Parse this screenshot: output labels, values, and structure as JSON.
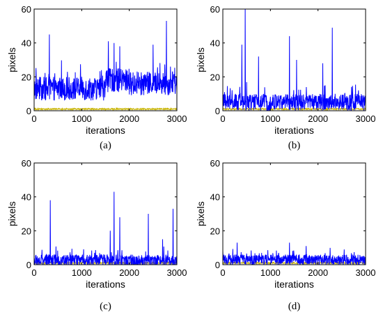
{
  "chart_data": [
    {
      "type": "line",
      "caption": "(a)",
      "xlabel": "iterations",
      "ylabel": "pixels",
      "xlim": [
        0,
        3000
      ],
      "ylim": [
        0,
        60
      ],
      "xticks": [
        0,
        1000,
        2000,
        3000
      ],
      "yticks": [
        0,
        20,
        40,
        60
      ],
      "grid": false,
      "legend": "none",
      "colors": {
        "noise": "#0000ff",
        "base": "#c8b400"
      },
      "baseline": 14,
      "spread": 7,
      "regions": [
        {
          "start": 0,
          "end": 1500,
          "mean": 13
        },
        {
          "start": 1500,
          "end": 2000,
          "mean": 18
        },
        {
          "start": 2000,
          "end": 2550,
          "mean": 16
        },
        {
          "start": 2550,
          "end": 3000,
          "mean": 16
        }
      ],
      "peaks": [
        {
          "x": 320,
          "y": 45
        },
        {
          "x": 1560,
          "y": 41
        },
        {
          "x": 1680,
          "y": 40
        },
        {
          "x": 1800,
          "y": 38
        },
        {
          "x": 2500,
          "y": 39
        },
        {
          "x": 2780,
          "y": 53
        }
      ]
    },
    {
      "type": "line",
      "caption": "(b)",
      "xlabel": "iterations",
      "ylabel": "pixels",
      "xlim": [
        0,
        3000
      ],
      "ylim": [
        0,
        60
      ],
      "xticks": [
        0,
        1000,
        2000,
        3000
      ],
      "yticks": [
        0,
        20,
        40,
        60
      ],
      "grid": false,
      "legend": "none",
      "colors": {
        "noise": "#0000ff",
        "base": "#c8b400"
      },
      "baseline": 5,
      "spread": 5,
      "regions": [],
      "peaks": [
        {
          "x": 400,
          "y": 39
        },
        {
          "x": 470,
          "y": 62
        },
        {
          "x": 750,
          "y": 32
        },
        {
          "x": 1400,
          "y": 44
        },
        {
          "x": 1550,
          "y": 30
        },
        {
          "x": 2300,
          "y": 49
        },
        {
          "x": 2100,
          "y": 28
        }
      ]
    },
    {
      "type": "line",
      "caption": "(c)",
      "xlabel": "iterations",
      "ylabel": "pixels",
      "xlim": [
        0,
        3000
      ],
      "ylim": [
        0,
        60
      ],
      "xticks": [
        0,
        1000,
        2000,
        3000
      ],
      "yticks": [
        0,
        20,
        40,
        60
      ],
      "grid": false,
      "legend": "none",
      "colors": {
        "noise": "#0000ff",
        "base": "#c8b400"
      },
      "baseline": 2.5,
      "spread": 3.5,
      "regions": [],
      "peaks": [
        {
          "x": 340,
          "y": 38
        },
        {
          "x": 1600,
          "y": 20
        },
        {
          "x": 1680,
          "y": 43
        },
        {
          "x": 1800,
          "y": 28
        },
        {
          "x": 2400,
          "y": 30
        },
        {
          "x": 2700,
          "y": 15
        },
        {
          "x": 2920,
          "y": 33
        }
      ]
    },
    {
      "type": "line",
      "caption": "(d)",
      "xlabel": "iterations",
      "ylabel": "pixels",
      "xlim": [
        0,
        3000
      ],
      "ylim": [
        0,
        60
      ],
      "xticks": [
        0,
        1000,
        2000,
        3000
      ],
      "yticks": [
        0,
        20,
        40,
        60
      ],
      "grid": false,
      "legend": "none",
      "colors": {
        "noise": "#0000ff",
        "base": "#c8b400"
      },
      "baseline": 3,
      "spread": 3,
      "regions": [],
      "peaks": [
        {
          "x": 300,
          "y": 13
        },
        {
          "x": 1400,
          "y": 13
        },
        {
          "x": 1750,
          "y": 11
        },
        {
          "x": 2550,
          "y": 9
        }
      ]
    }
  ]
}
